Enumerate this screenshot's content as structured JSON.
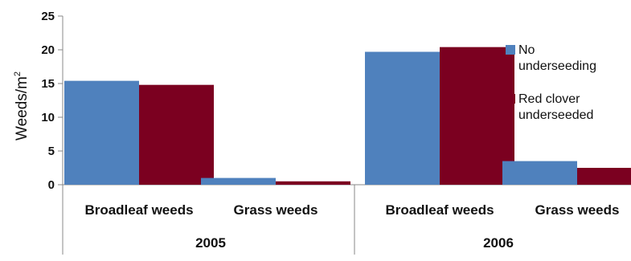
{
  "chart_data": {
    "type": "bar",
    "ylabel": "Weeds/m",
    "ylabel_superscript": "2",
    "ylim": [
      0,
      25
    ],
    "yticks": [
      "0",
      "5",
      "10",
      "15",
      "20",
      "25"
    ],
    "grid": false,
    "legend_position": "right",
    "groups": [
      {
        "label": "2005",
        "categories": [
          "Broadleaf weeds",
          "Grass weeds"
        ]
      },
      {
        "label": "2006",
        "categories": [
          "Broadleaf weeds",
          "Grass weeds"
        ]
      }
    ],
    "series": [
      {
        "name_lines": [
          "No",
          "underseeding"
        ],
        "color": "#4F81BD",
        "values": [
          15.4,
          1.0,
          19.7,
          3.5
        ]
      },
      {
        "name_lines": [
          "Red clover",
          "underseeded"
        ],
        "color": "#7B0020",
        "values": [
          14.8,
          0.5,
          20.4,
          2.5
        ]
      }
    ]
  }
}
